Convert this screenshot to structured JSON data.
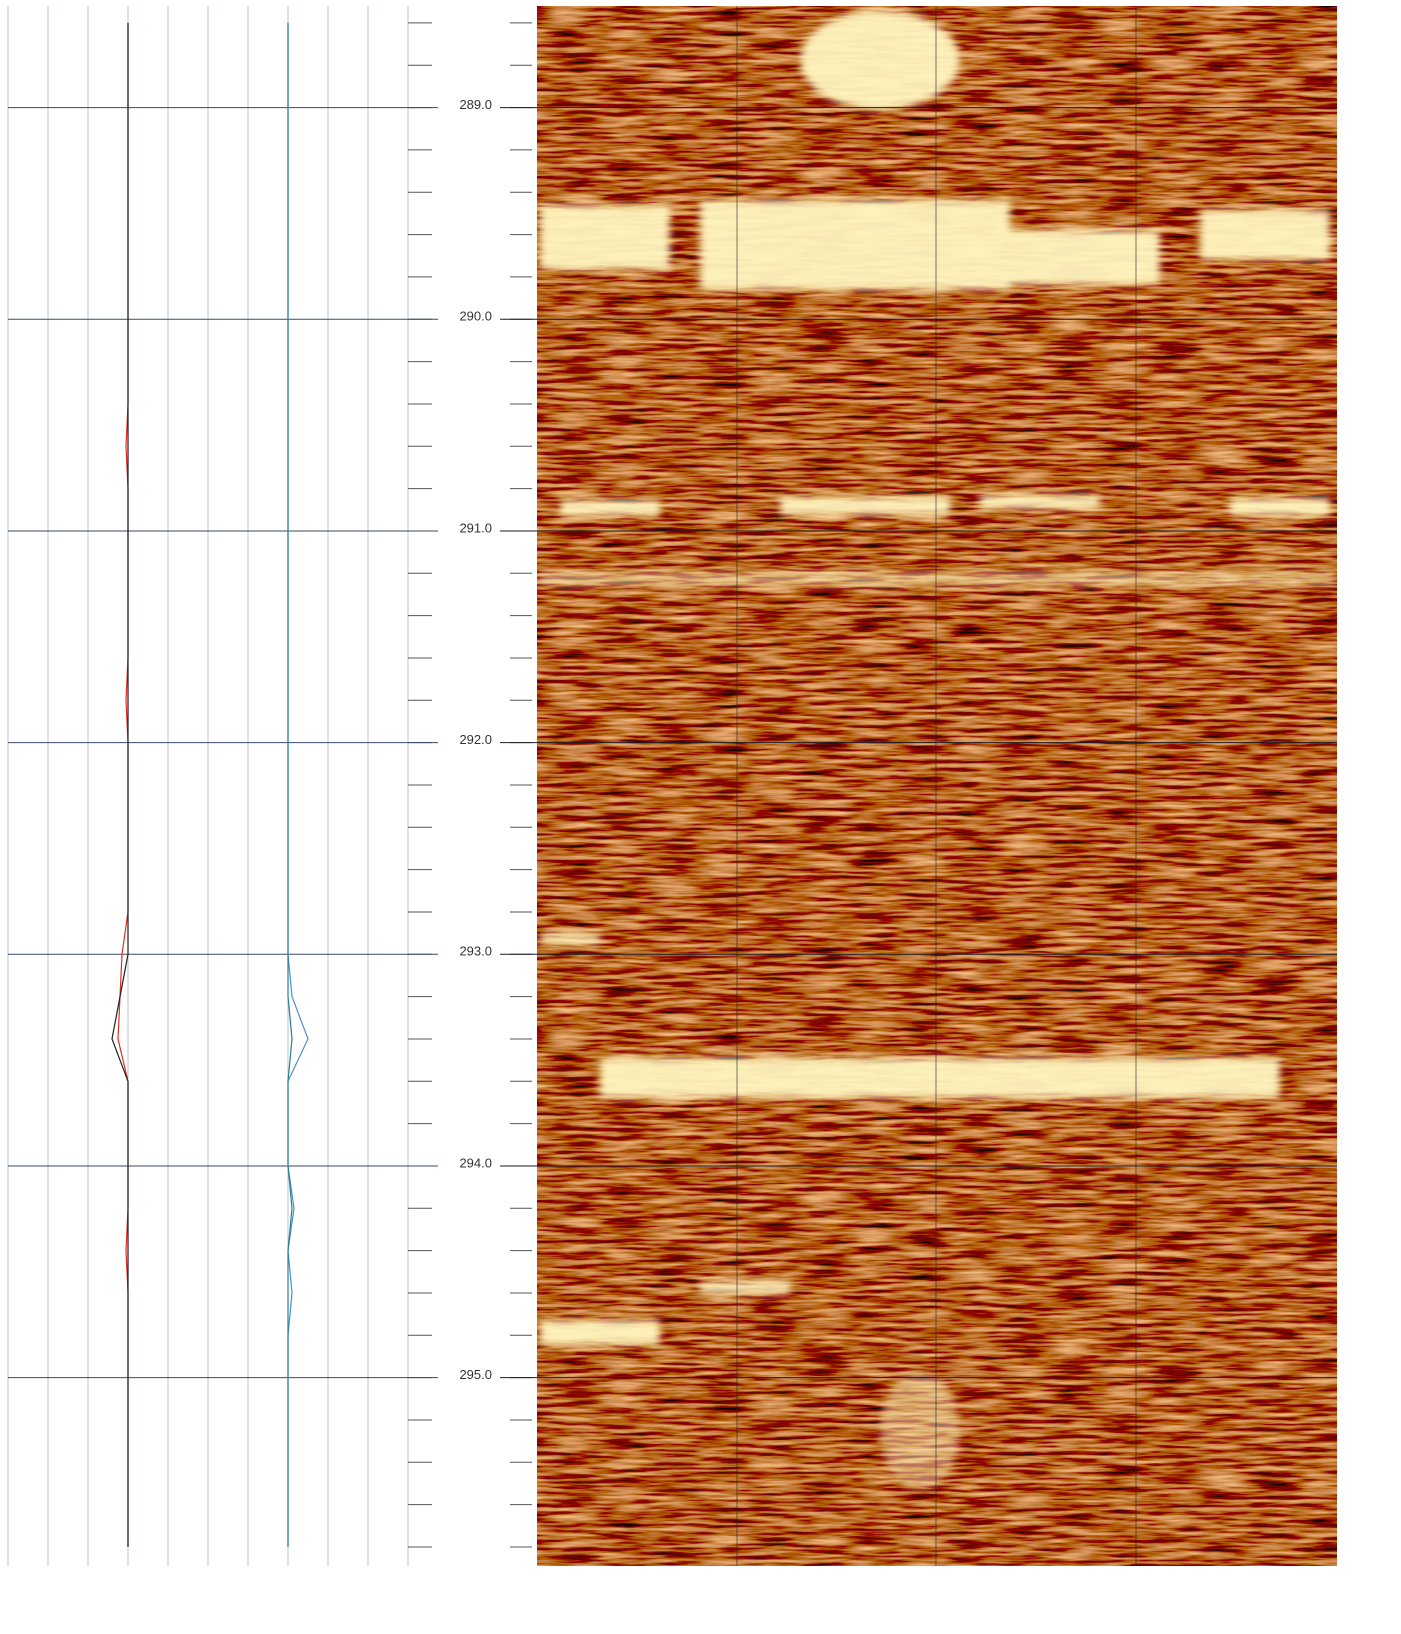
{
  "chart_data": {
    "type": "line",
    "ylim": [
      288.52,
      295.89
    ],
    "yticks": [
      {
        "value": 289,
        "label": "289.0"
      },
      {
        "value": 290,
        "label": "290.0"
      },
      {
        "value": 291,
        "label": "291.0"
      },
      {
        "value": 292,
        "label": "292.0"
      },
      {
        "value": 293,
        "label": "293.0"
      },
      {
        "value": 294,
        "label": "294.0"
      },
      {
        "value": 295,
        "label": "295.0"
      }
    ],
    "minor_step": 0.2,
    "xlim": [
      0,
      10
    ],
    "xticks": [
      0,
      1,
      2,
      3,
      4,
      5,
      6,
      7,
      8,
      9,
      10
    ],
    "grid": true,
    "y": [
      288.6,
      288.8,
      289.0,
      289.2,
      289.4,
      289.6,
      289.8,
      290.0,
      290.2,
      290.4,
      290.6,
      290.8,
      291.0,
      291.2,
      291.4,
      291.6,
      291.8,
      292.0,
      292.2,
      292.4,
      292.6,
      292.8,
      293.0,
      293.2,
      293.4,
      293.6,
      293.8,
      294.0,
      294.2,
      294.4,
      294.6,
      294.8,
      295.0,
      295.2,
      295.4,
      295.6,
      295.8
    ],
    "series": [
      {
        "color": "#e03020",
        "values": [
          3,
          3,
          3,
          3,
          3,
          3,
          3,
          3,
          3,
          3,
          2.95,
          3,
          3,
          3,
          3,
          3,
          2.95,
          3,
          3,
          3,
          3,
          3,
          2.85,
          2.8,
          2.75,
          3,
          3,
          3,
          3,
          2.95,
          3,
          3,
          3,
          3,
          3,
          3,
          3
        ]
      },
      {
        "color": "#202020",
        "values": [
          3,
          3,
          3,
          3,
          3,
          3,
          3,
          3,
          3,
          3,
          3,
          3,
          3,
          3,
          3,
          3,
          3,
          3,
          3,
          3,
          3,
          3,
          3,
          2.8,
          2.6,
          3,
          3,
          3,
          3,
          3,
          3,
          3,
          3,
          3,
          3,
          3,
          3
        ]
      },
      {
        "color": "#4a90d9",
        "values": [
          7,
          7,
          7,
          7,
          7,
          7,
          7,
          7,
          7,
          7,
          7,
          7,
          7,
          7,
          7,
          7,
          7,
          7,
          7,
          7,
          7,
          7,
          7,
          7.1,
          7.5,
          7,
          7,
          7,
          7.15,
          7,
          7.1,
          7,
          7,
          7,
          7,
          7,
          7
        ]
      },
      {
        "color": "#2a7f8f",
        "values": [
          7,
          7,
          7,
          7,
          7,
          7,
          7,
          7,
          7,
          7,
          7,
          7,
          7,
          7,
          7,
          7,
          7,
          7,
          7,
          7,
          7,
          7,
          7,
          7,
          7.1,
          7,
          7,
          7,
          7.1,
          7,
          7,
          7,
          7,
          7,
          7,
          7,
          7
        ]
      }
    ]
  }
}
